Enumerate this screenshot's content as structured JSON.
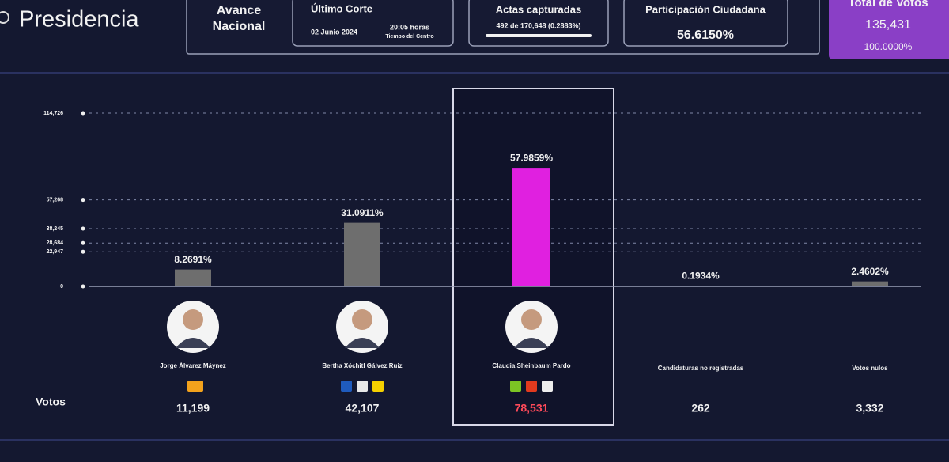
{
  "header": {
    "title": "Presidencia",
    "avance": "Avance Nacional",
    "corte": {
      "label": "Último Corte",
      "date": "02 Junio 2024",
      "time": "20:05 horas",
      "zone": "Tiempo del Centro"
    },
    "actas": {
      "label": "Actas capturadas",
      "value": "492 de 170,648 (0.2883%)"
    },
    "participacion": {
      "label": "Participación Ciudadana",
      "value": "56.6150%"
    },
    "total": {
      "label": "Total de Votos",
      "value": "135,431",
      "percent": "100.0000%"
    }
  },
  "chart_data": {
    "type": "bar",
    "categories": [
      "Jorge Álvarez Máynez",
      "Bertha Xóchitl Gálvez Ruiz",
      "Claudia Sheinbaum Pardo",
      "Candidaturas no registradas",
      "Votos nulos"
    ],
    "values": [
      11199,
      42107,
      78531,
      262,
      3332
    ],
    "value_labels": [
      "11,199",
      "42,107",
      "78,531",
      "262",
      "3,332"
    ],
    "shares": [
      "8.2691%",
      "31.0911%",
      "57.9859%",
      "0.1934%",
      "2.4602%"
    ],
    "votes_label": "Votos",
    "color": "#6e6e6e",
    "highlight_color": "#e020e0",
    "ylim": [
      0,
      114726
    ],
    "yticks": [
      0,
      {
        "value": 22947,
        "label": "22,947"
      },
      {
        "value": 28684,
        "label": "28,684"
      },
      {
        "value": 38245,
        "label": "38,245"
      },
      {
        "value": 57268,
        "label": "57,268"
      },
      {
        "value": 114726,
        "label": "114,726"
      }
    ],
    "grid": true
  }
}
